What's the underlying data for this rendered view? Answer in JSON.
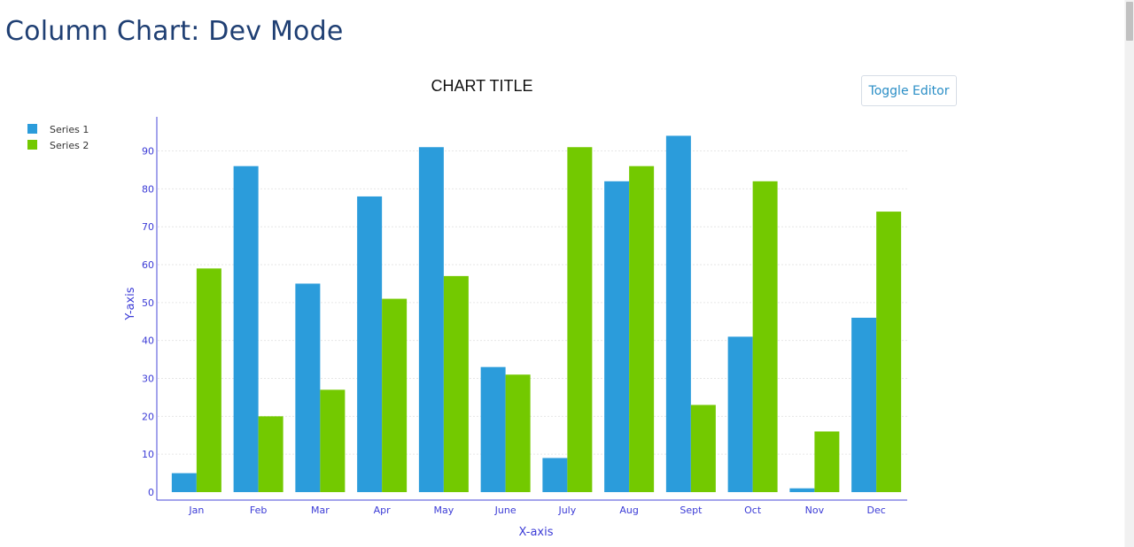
{
  "page": {
    "title": "Column Chart: Dev Mode"
  },
  "toolbar": {
    "toggle_editor_label": "Toggle Editor"
  },
  "chart_data": {
    "type": "bar",
    "title": "CHART TITLE",
    "xlabel": "X-axis",
    "ylabel": "Y-axis",
    "categories": [
      "Jan",
      "Feb",
      "Mar",
      "Apr",
      "May",
      "June",
      "July",
      "Aug",
      "Sept",
      "Oct",
      "Nov",
      "Dec"
    ],
    "series": [
      {
        "name": "Series 1",
        "color": "#2b9cdb",
        "values": [
          5,
          86,
          55,
          78,
          91,
          33,
          9,
          82,
          94,
          41,
          1,
          46
        ]
      },
      {
        "name": "Series 2",
        "color": "#73c900",
        "values": [
          59,
          20,
          27,
          51,
          57,
          31,
          91,
          86,
          23,
          82,
          16,
          74
        ]
      }
    ],
    "ylim": [
      0,
      99
    ],
    "yticks": [
      0,
      10,
      20,
      30,
      40,
      50,
      60,
      70,
      80,
      90
    ],
    "grid": true,
    "legend_position": "top-left"
  }
}
